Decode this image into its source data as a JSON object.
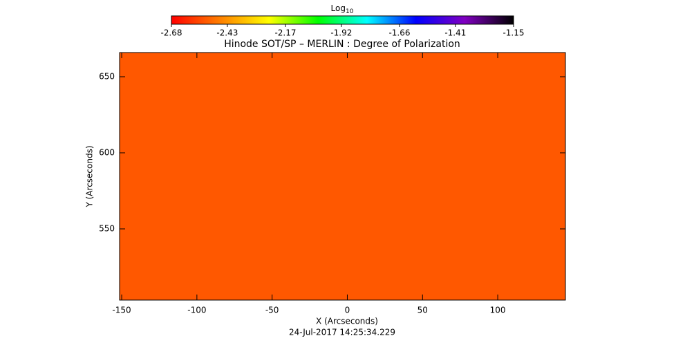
{
  "chart_data": {
    "type": "heatmap",
    "title": "Hinode SOT/SP – MERLIN : Degree of Polarization",
    "colorbar": {
      "label": "Log",
      "label_subscript": "10",
      "lim": [
        -2.68,
        -1.15
      ],
      "ticks": [
        -2.68,
        -2.43,
        -2.17,
        -1.92,
        -1.66,
        -1.41,
        -1.15
      ],
      "colormap": [
        "#ff0000",
        "#ff8000",
        "#ffff00",
        "#00ff00",
        "#00ffff",
        "#0000ff",
        "#8000c0",
        "#000000"
      ]
    },
    "x_label": "X (Arcseconds)",
    "y_label": "Y (Arcseconds)",
    "xlim": [
      -151.4,
      145
    ],
    "xticks": [
      -150,
      -100,
      -50,
      0,
      50,
      100
    ],
    "ylim": [
      503.2,
      665.9
    ],
    "yticks": [
      550,
      600,
      650
    ],
    "timestamp": "24-Jul-2017 14:25:34.229"
  }
}
